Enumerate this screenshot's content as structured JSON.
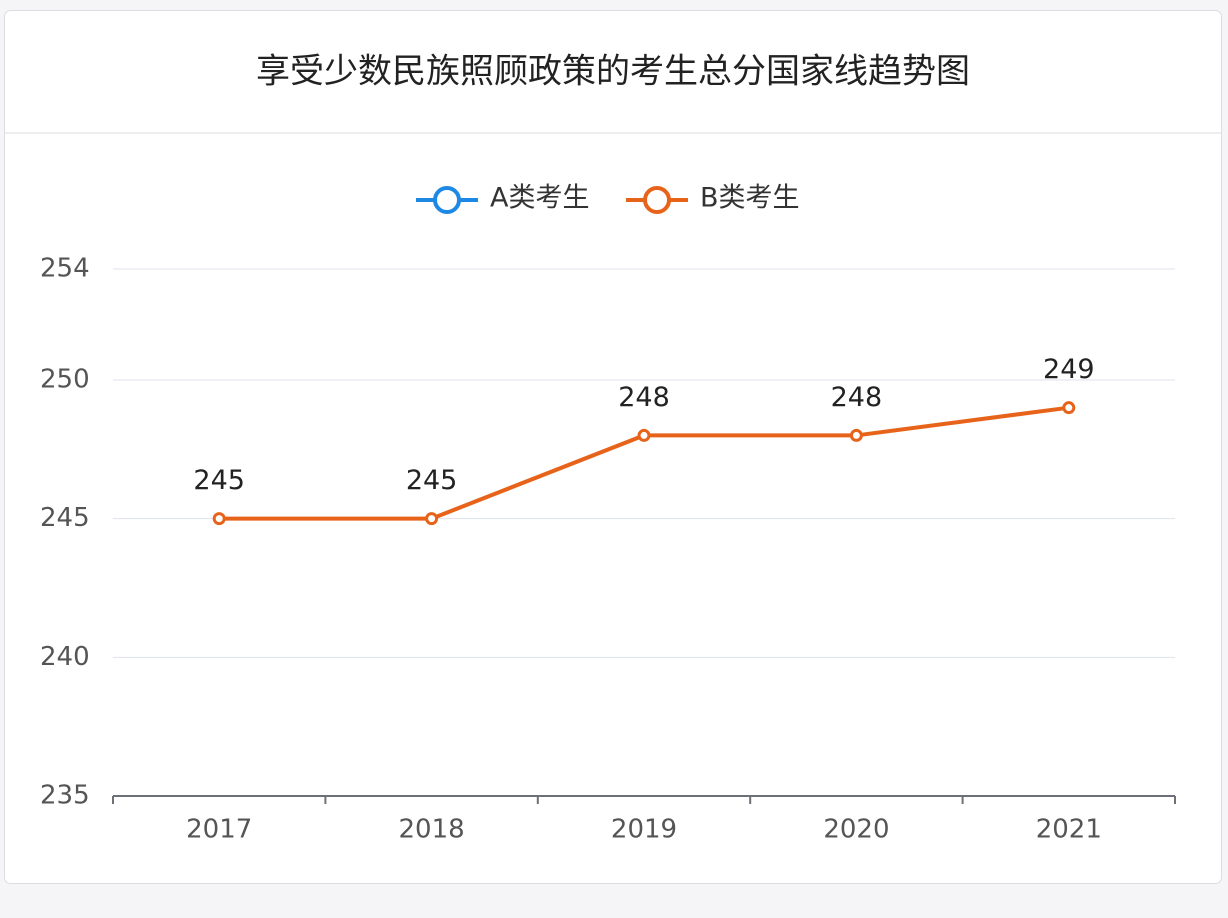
{
  "chart_data": {
    "type": "line",
    "title": "享受少数民族照顾政策的考生总分国家线趋势图",
    "categories": [
      "2017",
      "2018",
      "2019",
      "2020",
      "2021"
    ],
    "series": [
      {
        "name": "A类考生",
        "color": "#1e88e5",
        "values": [
          null,
          null,
          null,
          null,
          null
        ]
      },
      {
        "name": "B类考生",
        "color": "#e8631a",
        "values": [
          245,
          245,
          248,
          248,
          249
        ]
      }
    ],
    "ylim": [
      235,
      254
    ],
    "yticks": [
      235,
      240,
      245,
      250,
      254
    ],
    "grid": true,
    "legend": "top"
  }
}
